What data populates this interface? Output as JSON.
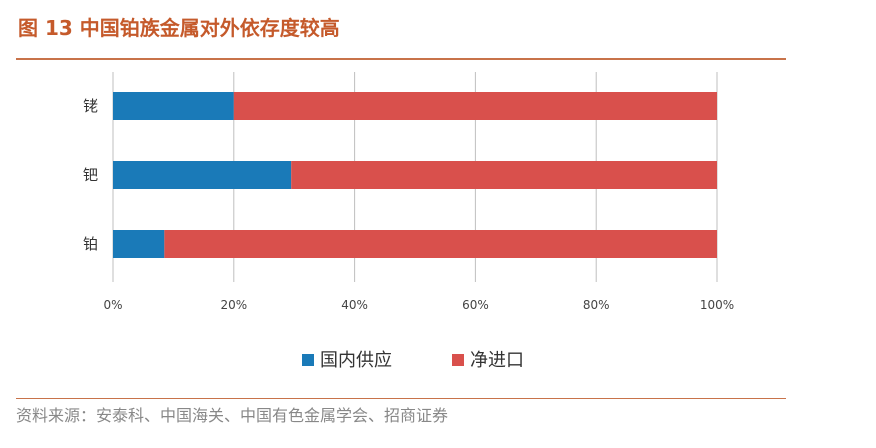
{
  "title": "图 13  中国铂族金属对外依存度较高",
  "source": "资料来源：安泰科、中国海关、中国有色金属学会、招商证券",
  "chart_data": {
    "type": "bar",
    "orientation": "horizontal",
    "stacked": true,
    "categories": [
      "铑",
      "钯",
      "铂"
    ],
    "series": [
      {
        "name": "国内供应",
        "values": [
          20,
          29.5,
          8.5
        ],
        "color": "#1a7ab8"
      },
      {
        "name": "净进口",
        "values": [
          80,
          70.5,
          91.5
        ],
        "color": "#d9504c"
      }
    ],
    "xlim": [
      0,
      100
    ],
    "xticks": [
      "0%",
      "20%",
      "40%",
      "60%",
      "80%",
      "100%"
    ],
    "grid": true,
    "legend_position": "bottom"
  }
}
